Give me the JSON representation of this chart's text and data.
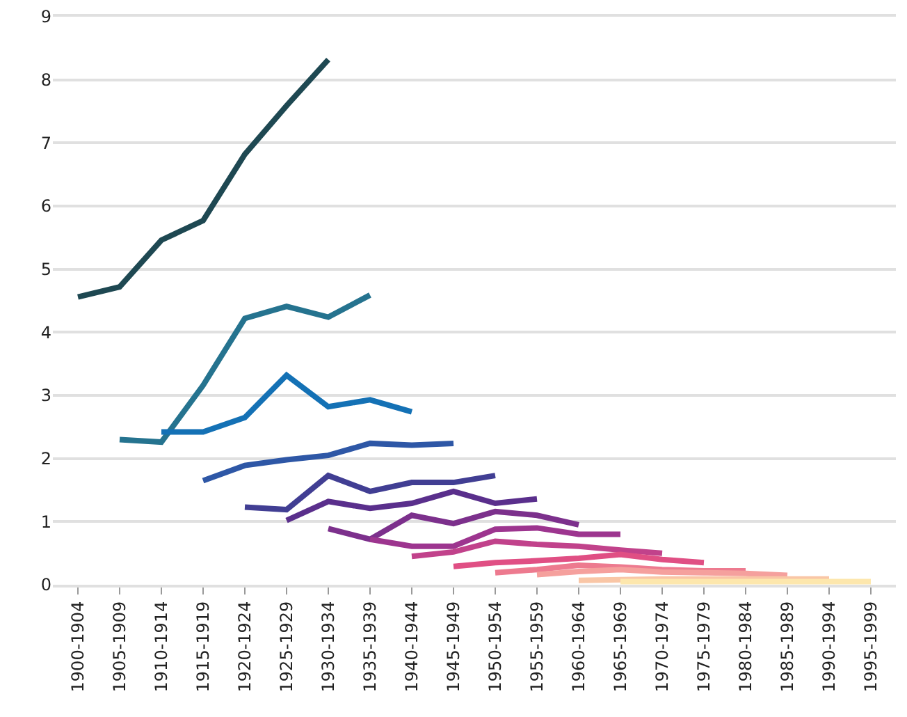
{
  "chart_data": {
    "type": "line",
    "categories": [
      "1900-1904",
      "1905-1909",
      "1910-1914",
      "1915-1919",
      "1920-1924",
      "1925-1929",
      "1930-1934",
      "1935-1939",
      "1940-1944",
      "1945-1949",
      "1950-1954",
      "1955-1959",
      "1960-1964",
      "1965-1969",
      "1970-1974",
      "1975-1979",
      "1980-1984",
      "1985-1989",
      "1990-1994",
      "1995-1999"
    ],
    "series": [
      {
        "color": "#1e4852",
        "values": [
          4.56,
          4.72,
          5.46,
          5.77,
          6.82,
          7.59,
          8.32,
          null,
          null,
          null,
          null,
          null,
          null,
          null,
          null,
          null,
          null,
          null,
          null,
          null
        ]
      },
      {
        "color": "#25738f",
        "values": [
          null,
          2.3,
          2.26,
          3.16,
          4.22,
          4.41,
          4.24,
          4.59,
          null,
          null,
          null,
          null,
          null,
          null,
          null,
          null,
          null,
          null,
          null,
          null
        ]
      },
      {
        "color": "#1471b5",
        "values": [
          null,
          null,
          2.42,
          2.42,
          2.65,
          3.32,
          2.82,
          2.93,
          2.74,
          null,
          null,
          null,
          null,
          null,
          null,
          null,
          null,
          null,
          null,
          null
        ]
      },
      {
        "color": "#2e57a6",
        "values": [
          null,
          null,
          null,
          1.65,
          1.89,
          1.98,
          2.05,
          2.24,
          2.21,
          2.24,
          null,
          null,
          null,
          null,
          null,
          null,
          null,
          null,
          null,
          null
        ]
      },
      {
        "color": "#413e93",
        "values": [
          null,
          null,
          null,
          null,
          1.23,
          1.19,
          1.73,
          1.48,
          1.62,
          1.62,
          1.73,
          null,
          null,
          null,
          null,
          null,
          null,
          null,
          null,
          null
        ]
      },
      {
        "color": "#5a2f8c",
        "values": [
          null,
          null,
          null,
          null,
          null,
          1.02,
          1.32,
          1.21,
          1.29,
          1.48,
          1.29,
          1.36,
          null,
          null,
          null,
          null,
          null,
          null,
          null,
          null
        ]
      },
      {
        "color": "#7c308c",
        "values": [
          null,
          null,
          null,
          null,
          null,
          null,
          0.89,
          0.72,
          1.1,
          0.97,
          1.16,
          1.1,
          0.95,
          null,
          null,
          null,
          null,
          null,
          null,
          null
        ]
      },
      {
        "color": "#9d358f",
        "values": [
          null,
          null,
          null,
          null,
          null,
          null,
          null,
          0.72,
          0.61,
          0.61,
          0.88,
          0.9,
          0.8,
          0.8,
          null,
          null,
          null,
          null,
          null,
          null
        ]
      },
      {
        "color": "#c1428b",
        "values": [
          null,
          null,
          null,
          null,
          null,
          null,
          null,
          null,
          0.45,
          0.52,
          0.69,
          0.64,
          0.61,
          0.55,
          0.5,
          null,
          null,
          null,
          null,
          null
        ]
      },
      {
        "color": "#e04f84",
        "values": [
          null,
          null,
          null,
          null,
          null,
          null,
          null,
          null,
          null,
          0.29,
          0.35,
          0.38,
          0.42,
          0.48,
          0.4,
          0.35,
          null,
          null,
          null,
          null
        ]
      },
      {
        "color": "#ed7a8f",
        "values": [
          null,
          null,
          null,
          null,
          null,
          null,
          null,
          null,
          null,
          null,
          0.19,
          0.24,
          0.31,
          0.28,
          0.24,
          0.22,
          0.22,
          null,
          null,
          null
        ]
      },
      {
        "color": "#f5a09d",
        "values": [
          null,
          null,
          null,
          null,
          null,
          null,
          null,
          null,
          null,
          null,
          null,
          0.16,
          0.21,
          0.24,
          0.2,
          0.19,
          0.18,
          0.15,
          null,
          null
        ]
      },
      {
        "color": "#f9c6a6",
        "values": [
          null,
          null,
          null,
          null,
          null,
          null,
          null,
          null,
          null,
          null,
          null,
          null,
          0.07,
          0.08,
          0.09,
          0.09,
          0.09,
          0.09,
          0.09,
          null
        ]
      },
      {
        "color": "#fde7ad",
        "values": [
          null,
          null,
          null,
          null,
          null,
          null,
          null,
          null,
          null,
          null,
          null,
          null,
          null,
          0.05,
          0.05,
          0.05,
          0.05,
          0.05,
          0.05,
          0.05
        ]
      }
    ],
    "ylim": [
      0,
      9
    ],
    "yticks": [
      0,
      1,
      2,
      3,
      4,
      5,
      6,
      7,
      8,
      9
    ],
    "grid": "y",
    "marker": "none",
    "line_style": "solid"
  }
}
